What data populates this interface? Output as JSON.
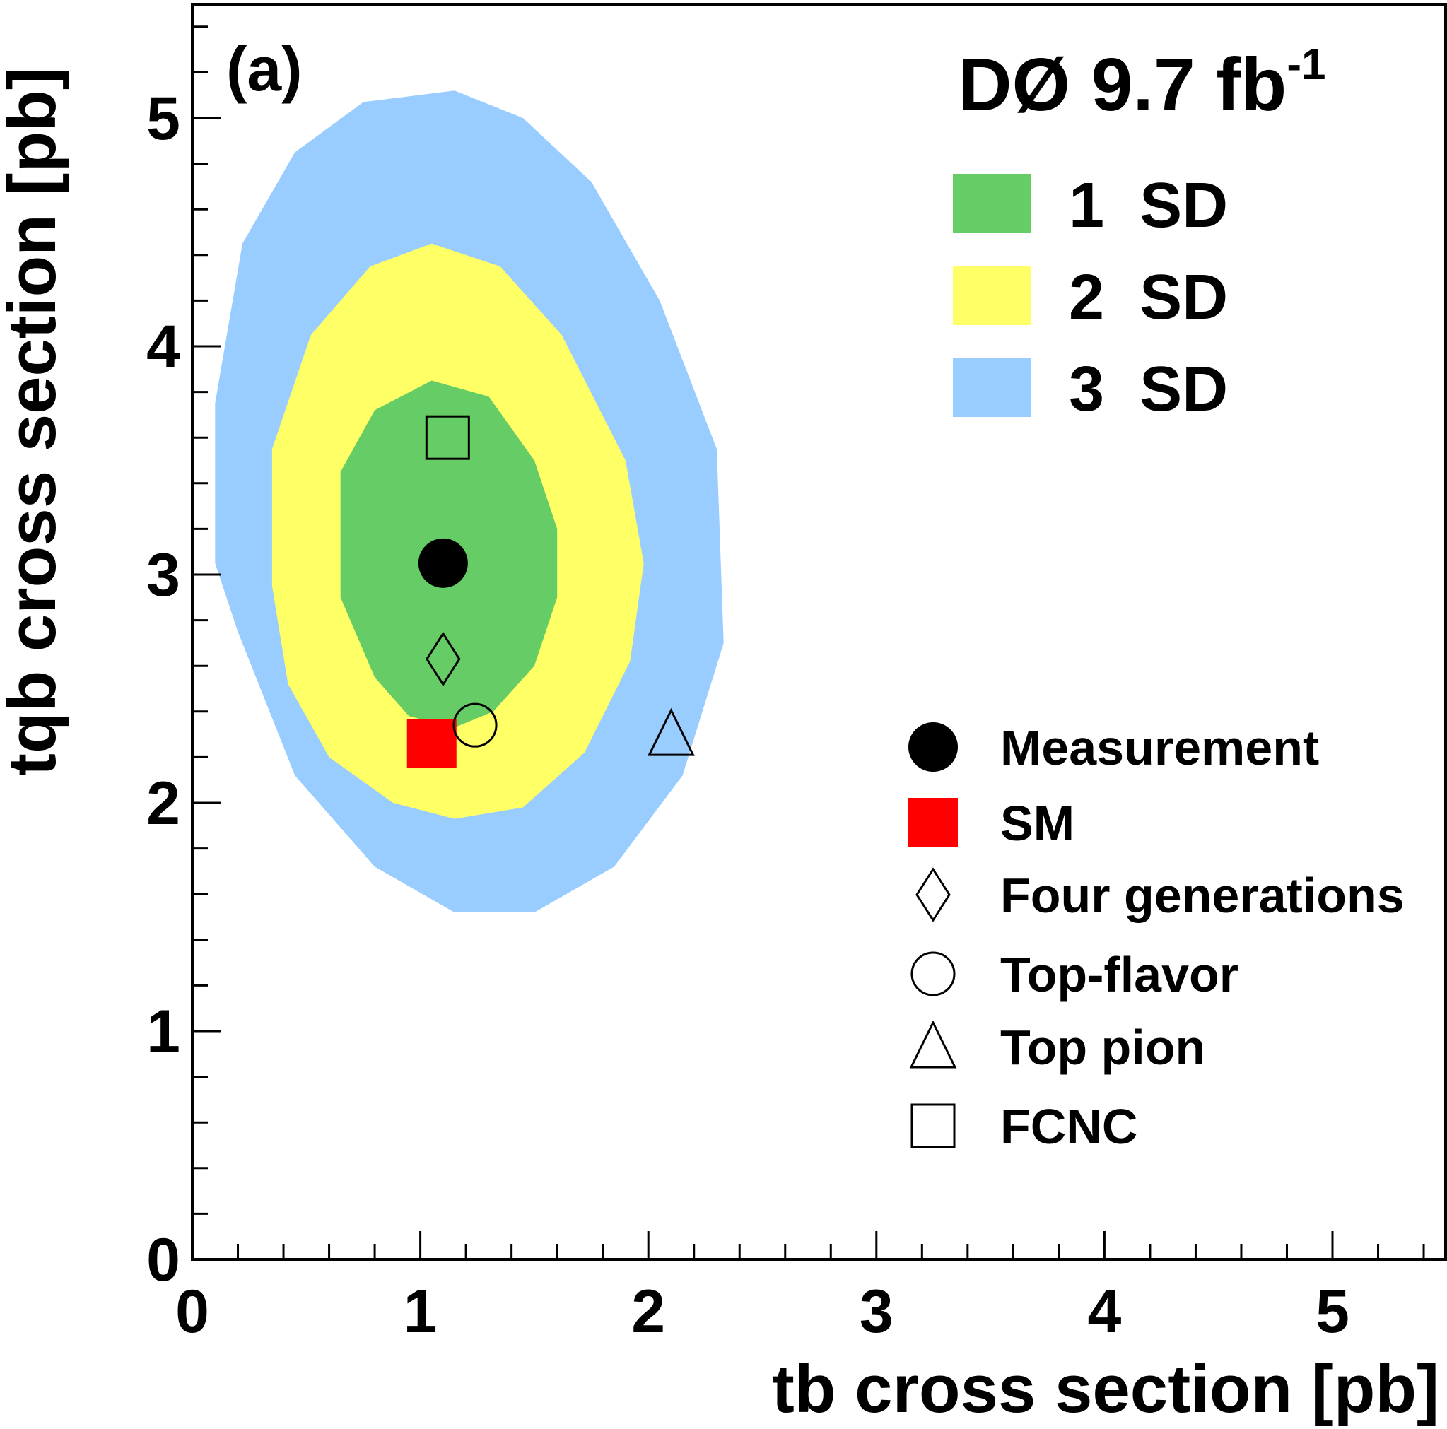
{
  "chart_data": {
    "type": "scatter",
    "panel_label": "(a)",
    "experiment": "DØ 9.7 fb",
    "experiment_superscript": "-1",
    "xlabel": "tb cross section [pb]",
    "ylabel": "tqb cross section [pb]",
    "xlim": [
      0,
      5.45
    ],
    "ylim": [
      0,
      5.5
    ],
    "x_ticks": [
      "0",
      "1",
      "2",
      "3",
      "4",
      "5"
    ],
    "y_ticks": [
      "0",
      "1",
      "2",
      "3",
      "4",
      "5"
    ],
    "contours": [
      {
        "name": "3  SD",
        "color": "#99ccff",
        "points": [
          [
            0.1,
            3.75
          ],
          [
            0.22,
            4.45
          ],
          [
            0.45,
            4.85
          ],
          [
            0.75,
            5.07
          ],
          [
            1.15,
            5.12
          ],
          [
            1.45,
            5.0
          ],
          [
            1.75,
            4.72
          ],
          [
            2.05,
            4.2
          ],
          [
            2.3,
            3.55
          ],
          [
            2.33,
            2.7
          ],
          [
            2.15,
            2.12
          ],
          [
            1.85,
            1.72
          ],
          [
            1.5,
            1.52
          ],
          [
            1.15,
            1.52
          ],
          [
            0.8,
            1.72
          ],
          [
            0.45,
            2.12
          ],
          [
            0.2,
            2.75
          ],
          [
            0.1,
            3.05
          ]
        ]
      },
      {
        "name": "2  SD",
        "color": "#ffff66",
        "points": [
          [
            0.35,
            3.55
          ],
          [
            0.52,
            4.05
          ],
          [
            0.78,
            4.35
          ],
          [
            1.05,
            4.45
          ],
          [
            1.35,
            4.35
          ],
          [
            1.62,
            4.05
          ],
          [
            1.9,
            3.5
          ],
          [
            1.98,
            3.05
          ],
          [
            1.92,
            2.62
          ],
          [
            1.72,
            2.22
          ],
          [
            1.45,
            1.98
          ],
          [
            1.15,
            1.93
          ],
          [
            0.88,
            2.0
          ],
          [
            0.6,
            2.2
          ],
          [
            0.42,
            2.52
          ],
          [
            0.35,
            2.95
          ]
        ]
      },
      {
        "name": "1  SD",
        "color": "#66cc66",
        "points": [
          [
            0.65,
            3.45
          ],
          [
            0.8,
            3.72
          ],
          [
            1.05,
            3.85
          ],
          [
            1.3,
            3.78
          ],
          [
            1.5,
            3.5
          ],
          [
            1.6,
            3.2
          ],
          [
            1.6,
            2.9
          ],
          [
            1.5,
            2.6
          ],
          [
            1.32,
            2.4
          ],
          [
            1.15,
            2.33
          ],
          [
            0.95,
            2.38
          ],
          [
            0.8,
            2.55
          ],
          [
            0.65,
            2.9
          ]
        ]
      }
    ],
    "points": [
      {
        "name": "Measurement",
        "marker": "filled-circle",
        "x": 1.1,
        "y": 3.05
      },
      {
        "name": "SM",
        "marker": "filled-square",
        "x": 1.05,
        "y": 2.26
      },
      {
        "name": "Four generations",
        "marker": "open-diamond",
        "x": 1.1,
        "y": 2.63
      },
      {
        "name": "Top-flavor",
        "marker": "open-circle",
        "x": 1.24,
        "y": 2.34
      },
      {
        "name": "Top pion",
        "marker": "open-triangle",
        "x": 2.1,
        "y": 2.3
      },
      {
        "name": "FCNC",
        "marker": "open-square",
        "x": 1.12,
        "y": 3.6
      }
    ],
    "legend_location": "top-right and right"
  }
}
